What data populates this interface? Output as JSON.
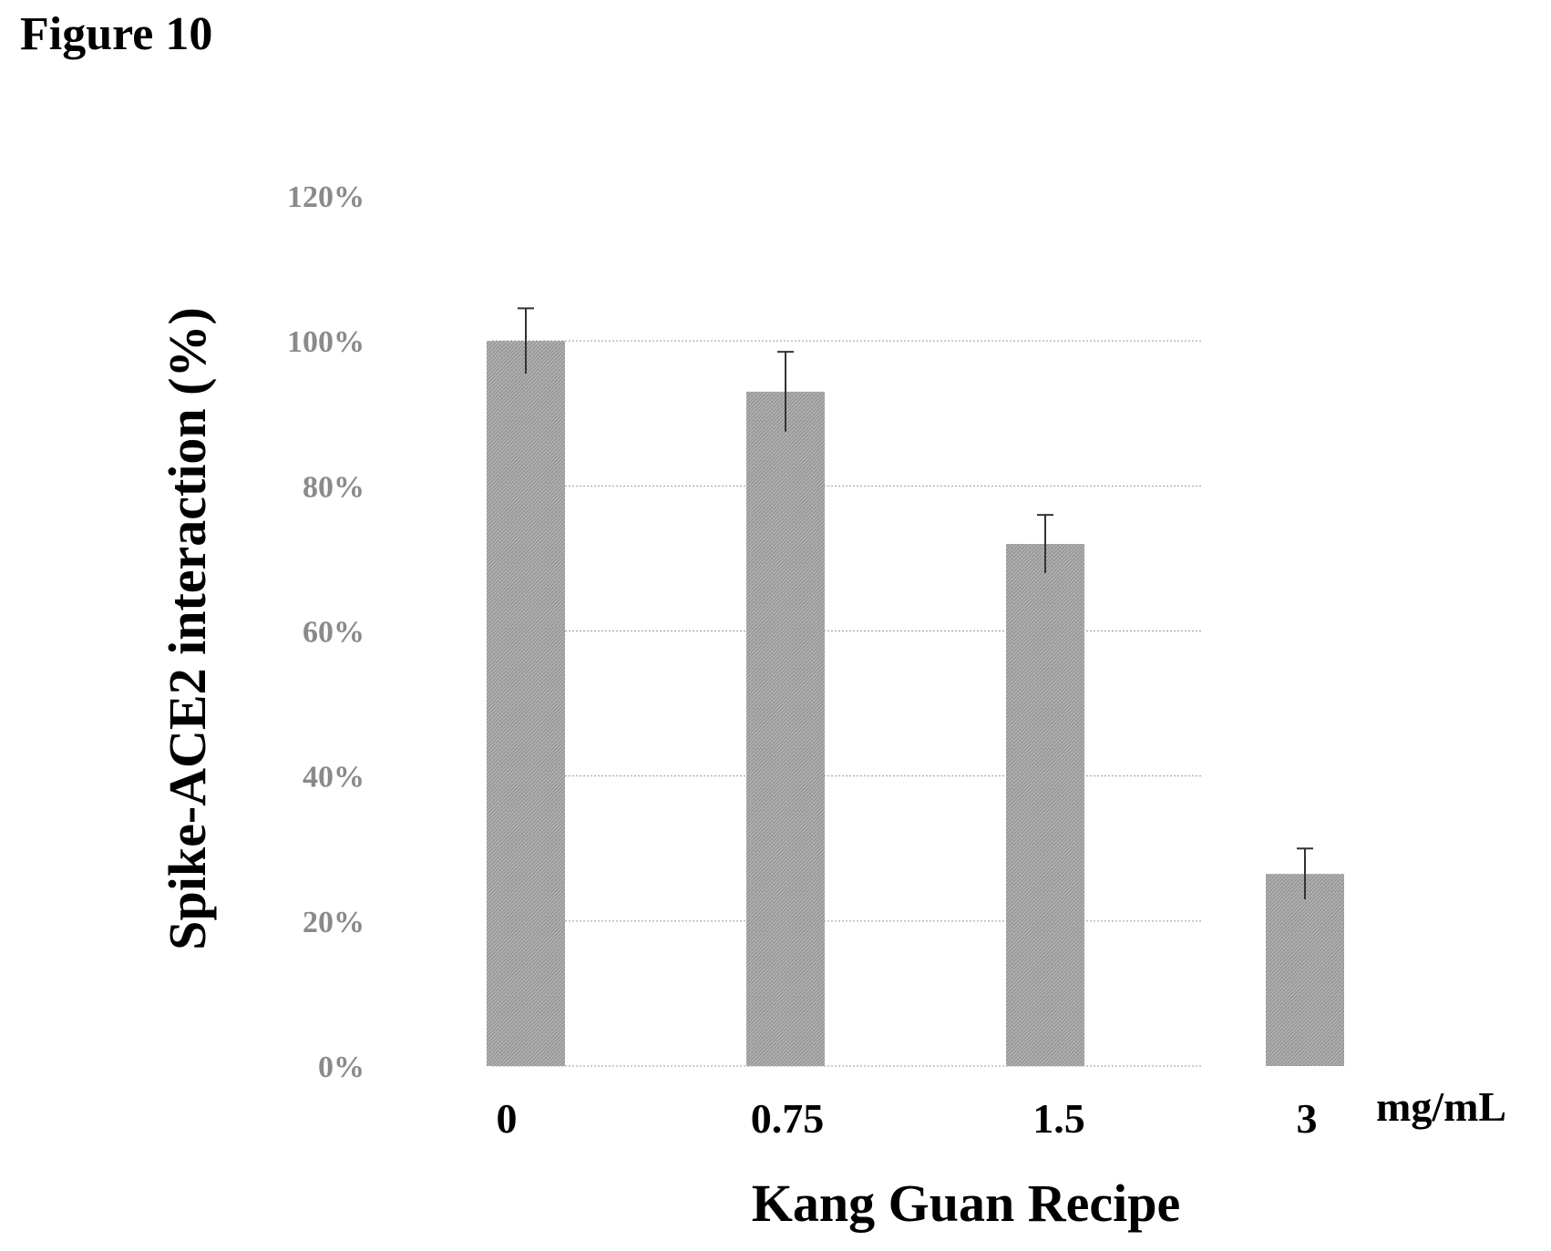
{
  "figure_label": "Figure 10",
  "chart_data": {
    "type": "bar",
    "categories": [
      "0",
      "0.75",
      "1.5",
      "3"
    ],
    "values": [
      100,
      93,
      72,
      26.5
    ],
    "error": [
      4.5,
      5.5,
      4.0,
      3.5
    ],
    "unit_label": "mg/mL",
    "xlabel": "Kang Guan Recipe",
    "ylabel": "Spike-ACE2 interaction (%)",
    "yticks": [
      "0%",
      "20%",
      "40%",
      "60%",
      "80%",
      "100%",
      "120%"
    ],
    "ylim": [
      0,
      120
    ],
    "bar_color": "#a9a9a9",
    "grid": true
  }
}
